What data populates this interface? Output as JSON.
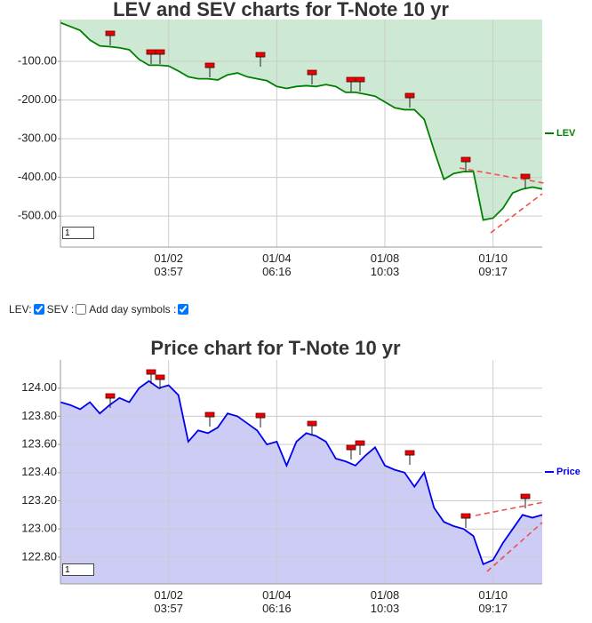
{
  "chart_data": [
    {
      "type": "area",
      "title": "LEV and SEV charts for T-Note 10 yr",
      "fill_to": "top",
      "grid": true,
      "input_value": "1",
      "categories": [
        null,
        null,
        null,
        null,
        null,
        null,
        null,
        null,
        null,
        null,
        null,
        "01/02\n03:57",
        null,
        null,
        null,
        null,
        null,
        null,
        null,
        null,
        null,
        null,
        "01/04\n06:16",
        null,
        null,
        null,
        null,
        null,
        null,
        null,
        null,
        null,
        null,
        "01/08\n10:03",
        null,
        null,
        null,
        null,
        null,
        null,
        null,
        null,
        null,
        null,
        "01/10\n09:17",
        null,
        null,
        null,
        null,
        null
      ],
      "series": [
        {
          "name": "LEV",
          "color": "#008000",
          "fill_color": "#cde8d3",
          "values": [
            0,
            -10,
            -20,
            -45,
            -60,
            -62,
            -65,
            -70,
            -95,
            -110,
            -110,
            -112,
            -125,
            -140,
            -145,
            -145,
            -148,
            -135,
            -130,
            -140,
            -145,
            -150,
            -165,
            -170,
            -165,
            -163,
            -165,
            -160,
            -165,
            -180,
            -180,
            -185,
            -190,
            -205,
            -220,
            -225,
            -225,
            -250,
            -330,
            -405,
            -390,
            -385,
            -385,
            -510,
            -505,
            -480,
            -440,
            -430,
            -425,
            -430
          ]
        }
      ],
      "ylim": [
        -580,
        8
      ],
      "yticks": [
        {
          "value": -100,
          "label": "-100.00"
        },
        {
          "value": -200,
          "label": "-200.00"
        },
        {
          "value": -300,
          "label": "-300.00"
        },
        {
          "value": -400,
          "label": "-400.00"
        },
        {
          "value": -500,
          "label": "-500.00"
        }
      ]
    },
    {
      "type": "area",
      "title": "Price chart for T-Note 10 yr",
      "fill_to": "bottom",
      "grid": true,
      "input_value": "1",
      "categories": [
        null,
        null,
        null,
        null,
        null,
        null,
        null,
        null,
        null,
        null,
        null,
        "01/02\n03:57",
        null,
        null,
        null,
        null,
        null,
        null,
        null,
        null,
        null,
        null,
        "01/04\n06:16",
        null,
        null,
        null,
        null,
        null,
        null,
        null,
        null,
        null,
        null,
        "01/08\n10:03",
        null,
        null,
        null,
        null,
        null,
        null,
        null,
        null,
        null,
        null,
        "01/10\n09:17",
        null,
        null,
        null,
        null,
        null
      ],
      "series": [
        {
          "name": "Price",
          "color": "#0000ee",
          "fill_color": "#ccccf5",
          "values": [
            123.9,
            123.88,
            123.85,
            123.9,
            123.82,
            123.88,
            123.93,
            123.9,
            124.0,
            124.05,
            124.0,
            124.02,
            123.95,
            123.62,
            123.7,
            123.68,
            123.72,
            123.82,
            123.8,
            123.75,
            123.7,
            123.6,
            123.62,
            123.45,
            123.62,
            123.68,
            123.66,
            123.62,
            123.5,
            123.48,
            123.45,
            123.52,
            123.58,
            123.45,
            123.42,
            123.4,
            123.3,
            123.4,
            123.15,
            123.05,
            123.02,
            123.0,
            122.95,
            122.75,
            122.78,
            122.9,
            123.0,
            123.1,
            123.08,
            123.1
          ]
        }
      ],
      "ylim": [
        122.61,
        124.2
      ],
      "yticks": [
        {
          "value": 124.0,
          "label": "124.00"
        },
        {
          "value": 123.8,
          "label": "123.80"
        },
        {
          "value": 123.6,
          "label": "123.60"
        },
        {
          "value": 123.4,
          "label": "123.40"
        },
        {
          "value": 123.2,
          "label": "123.20"
        },
        {
          "value": 123.0,
          "label": "123.00"
        },
        {
          "value": 122.8,
          "label": "122.80"
        }
      ]
    }
  ],
  "controls": [
    {
      "label": "LEV:",
      "checked": true
    },
    {
      "label": "SEV :",
      "checked": false
    },
    {
      "label": "Add day symbols :",
      "checked": true
    }
  ]
}
